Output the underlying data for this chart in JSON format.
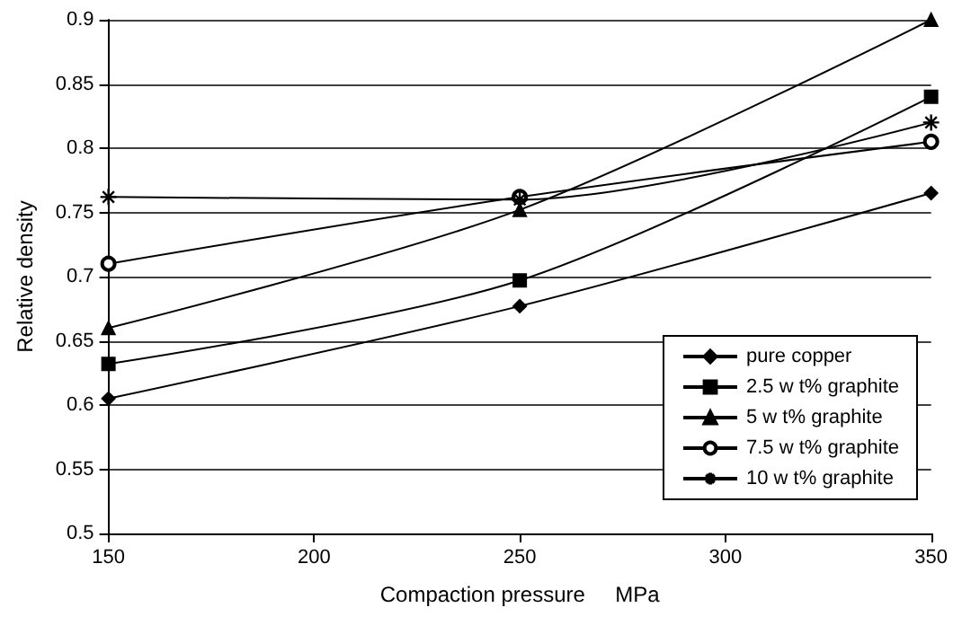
{
  "chart_data": {
    "type": "line",
    "xlabel": "Compaction pressure     MPa",
    "ylabel": "Relative density",
    "x": [
      150,
      250,
      350
    ],
    "series": [
      {
        "name": "pure copper",
        "color": "#000000",
        "marker": "diamond",
        "values": [
          0.605,
          0.677,
          0.765
        ]
      },
      {
        "name": "2.5 w t% graphite",
        "color": "#000000",
        "marker": "square",
        "values": [
          0.632,
          0.697,
          0.84
        ]
      },
      {
        "name": "5 w t% graphite",
        "color": "#000000",
        "marker": "triangle",
        "values": [
          0.66,
          0.752,
          0.9
        ]
      },
      {
        "name": "7.5 w t% graphite",
        "color": "#000000",
        "marker": "circle",
        "values": [
          0.71,
          0.762,
          0.805
        ]
      },
      {
        "name": "10 w t% graphite",
        "color": "#000000",
        "marker": "cross",
        "values": [
          0.762,
          0.76,
          0.82
        ]
      }
    ],
    "xlim": [
      150,
      350
    ],
    "xticks": [
      150,
      200,
      250,
      300,
      350
    ],
    "ylim": [
      0.5,
      0.9
    ],
    "yticks": [
      0.5,
      0.55,
      0.6,
      0.65,
      0.7,
      0.75,
      0.8,
      0.85,
      0.9
    ],
    "grid": "y",
    "legend": "bottom right"
  }
}
